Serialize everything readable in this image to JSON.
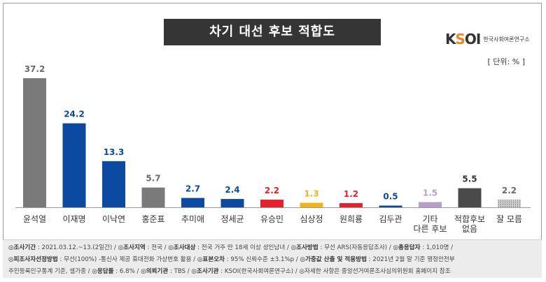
{
  "title": "차기 대선 후보 적합도",
  "logo": {
    "mark": "KSOI",
    "text": "한국사회여론연구소"
  },
  "unit": "[ 단위: % ]",
  "chart_data": {
    "type": "bar",
    "categories": [
      "윤석열",
      "이재명",
      "이낙연",
      "홍준표",
      "추미애",
      "정세균",
      "유승민",
      "심상정",
      "원희룡",
      "김두관",
      "기타\n다른 후보",
      "적합후보\n없음",
      "잘 모름"
    ],
    "values": [
      37.2,
      24.2,
      13.3,
      5.7,
      2.7,
      2.4,
      2.2,
      1.3,
      1.2,
      0.5,
      1.5,
      5.5,
      2.2
    ],
    "colors": [
      "#7a7a7a",
      "#0b4aa0",
      "#0b4aa0",
      "#7a7a7a",
      "#0b4aa0",
      "#0b4aa0",
      "#e5202c",
      "#f0b418",
      "#e5202c",
      "#0b4aa0",
      "#b7a0c8",
      "#4a4a4a",
      "#b0b0b0"
    ],
    "label_colors": [
      "#6a6a6a",
      "#0b4aa0",
      "#0b4aa0",
      "#6a6a6a",
      "#0b4aa0",
      "#0b4aa0",
      "#e5202c",
      "#f0b418",
      "#e5202c",
      "#0b4aa0",
      "#b7a0c8",
      "#333333",
      "#6a6a6a"
    ],
    "patterns": [
      null,
      null,
      null,
      null,
      null,
      null,
      null,
      null,
      null,
      null,
      null,
      null,
      "dots"
    ],
    "ylim": [
      0,
      37.2
    ],
    "title": "차기 대선 후보 적합도",
    "xlabel": "",
    "ylabel": "",
    "grid": false
  },
  "footnote": {
    "line1": [
      {
        "k": "◎조사기간",
        "v": " : 2021.03.12.~13.(2일간)  /  "
      },
      {
        "k": "◎조사지역",
        "v": " : 전국  /  "
      },
      {
        "k": "◎조사대상",
        "v": " : 전국 거주 만 18세 이상 성인남녀  /  "
      },
      {
        "k": "◎조사방법",
        "v": " : 무선 ARS(자동응답조사)  /  "
      },
      {
        "k": "◎총응답자",
        "v": " : 1,010명  /"
      }
    ],
    "line2": [
      {
        "k": "◎피조사자선정방법",
        "v": " : 무선(100%) -통신사 제공 휴대전화 가상번호 활용  /  "
      },
      {
        "k": "◎표본오차",
        "v": " : 95% 신뢰수준 ±3.1%p  /  "
      },
      {
        "k": "◎가중값 산출 및 적용방법",
        "v": " : 2021년 2월 말 기준 행정안전부"
      }
    ],
    "line3": [
      {
        "k": "",
        "v": "주민등록인구통계 기준, 셀가중  /  "
      },
      {
        "k": "◎응답률",
        "v": " : 6.8%  /  "
      },
      {
        "k": "◎의뢰기관",
        "v": " : TBS  /  "
      },
      {
        "k": "◎조사기관",
        "v": " : KSOI(한국사회여론연구소)  /  "
      },
      {
        "k": "",
        "v": "◎자세한 사항은 중앙선거여론조사심의위원회 홈페이지 참조"
      }
    ]
  }
}
